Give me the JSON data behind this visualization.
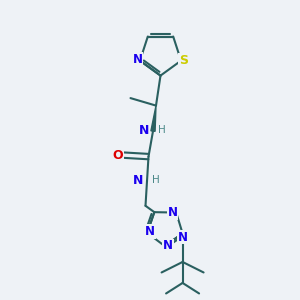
{
  "bg_color": "#eef2f6",
  "bond_color": "#2a6060",
  "n_color": "#1a00ee",
  "o_color": "#dd0000",
  "s_color": "#cccc00",
  "h_color": "#4a8888",
  "lw": 1.5,
  "fs": 9.0,
  "fig_w": 3.0,
  "fig_h": 3.0,
  "dpi": 100,
  "xl": [
    2.5,
    8.5
  ],
  "yl": [
    0.5,
    10.5
  ]
}
